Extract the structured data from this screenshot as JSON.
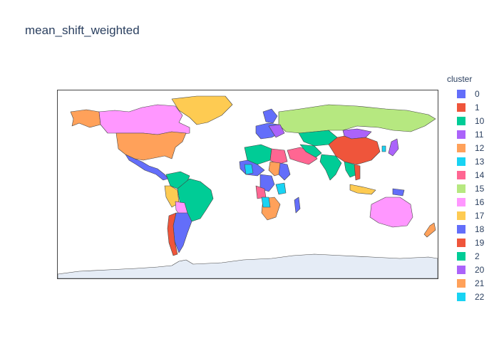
{
  "title": "mean_shift_weighted",
  "legend": {
    "title": "cluster",
    "items": [
      {
        "label": "0",
        "color": "#636efa"
      },
      {
        "label": "1",
        "color": "#ef553b"
      },
      {
        "label": "10",
        "color": "#00cc96"
      },
      {
        "label": "11",
        "color": "#ab63fa"
      },
      {
        "label": "12",
        "color": "#ffa15a"
      },
      {
        "label": "13",
        "color": "#19d3f3"
      },
      {
        "label": "14",
        "color": "#ff6692"
      },
      {
        "label": "15",
        "color": "#b6e880"
      },
      {
        "label": "16",
        "color": "#ff97ff"
      },
      {
        "label": "17",
        "color": "#fecb52"
      },
      {
        "label": "18",
        "color": "#636efa"
      },
      {
        "label": "19",
        "color": "#ef553b"
      },
      {
        "label": "2",
        "color": "#00cc96"
      },
      {
        "label": "20",
        "color": "#ab63fa"
      },
      {
        "label": "21",
        "color": "#ffa15a"
      },
      {
        "label": "22",
        "color": "#19d3f3"
      }
    ]
  },
  "map": {
    "projection": "equirectangular",
    "land_color": "#e5ecf6",
    "border_color": "#444444"
  }
}
